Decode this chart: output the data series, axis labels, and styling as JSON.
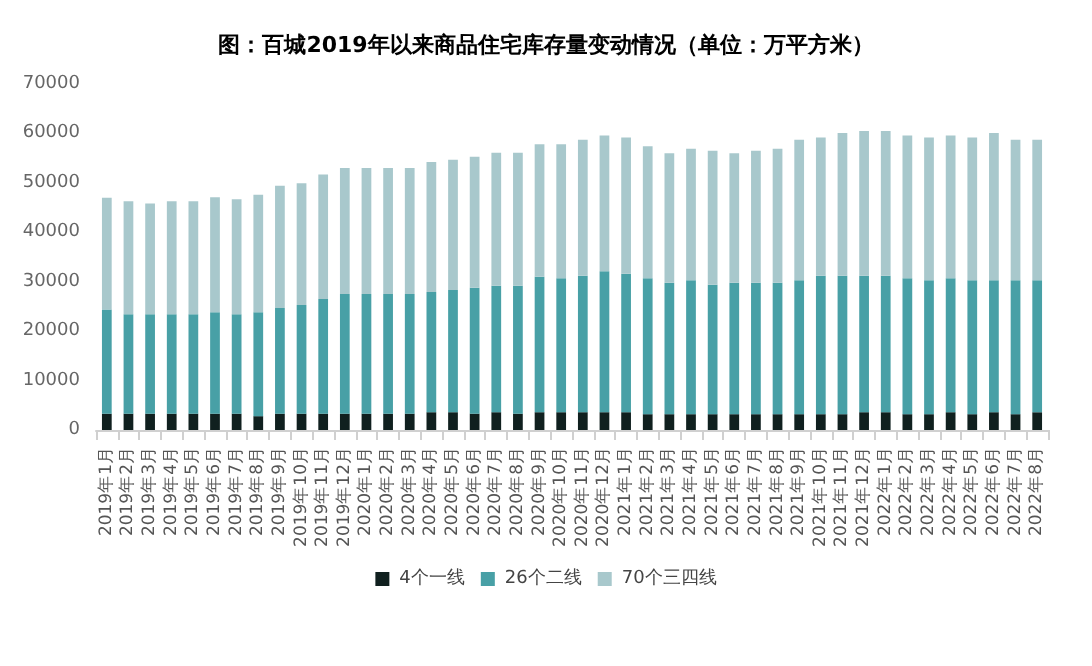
{
  "chart_data": {
    "type": "bar",
    "stacked": true,
    "title": "图：百城2019年以来商品住宅库存量变动情况（单位：万平方米）",
    "categories": [
      "2019年1月",
      "2019年2月",
      "2019年3月",
      "2019年4月",
      "2019年5月",
      "2019年6月",
      "2019年7月",
      "2019年8月",
      "2019年9月",
      "2019年10月",
      "2019年11月",
      "2019年12月",
      "2020年1月",
      "2020年2月",
      "2020年3月",
      "2020年4月",
      "2020年5月",
      "2020年6月",
      "2020年7月",
      "2020年8月",
      "2020年9月",
      "2020年10月",
      "2020年11月",
      "2020年12月",
      "2021年1月",
      "2021年2月",
      "2021年3月",
      "2021年4月",
      "2021年5月",
      "2021年6月",
      "2021年7月",
      "2021年8月",
      "2021年9月",
      "2021年10月",
      "2021年11月",
      "2021年12月",
      "2022年1月",
      "2022年2月",
      "2022年3月",
      "2022年4月",
      "2022年5月",
      "2022年6月",
      "2022年7月",
      "2022年8月"
    ],
    "series": [
      {
        "name": "4个一线",
        "color": "#10201f",
        "values": [
          3300,
          3300,
          3300,
          3300,
          3300,
          3300,
          3300,
          2800,
          3300,
          3300,
          3300,
          3300,
          3300,
          3300,
          3300,
          3600,
          3600,
          3300,
          3600,
          3300,
          3600,
          3600,
          3600,
          3600,
          3600,
          3200,
          3200,
          3200,
          3200,
          3200,
          3200,
          3200,
          3200,
          3200,
          3200,
          3600,
          3600,
          3200,
          3200,
          3600,
          3200,
          3600,
          3200,
          3600
        ]
      },
      {
        "name": "26个二线",
        "color": "#48a0a6",
        "values": [
          21100,
          20100,
          20100,
          20100,
          20100,
          20500,
          20100,
          21000,
          21400,
          22000,
          23200,
          24200,
          24200,
          24200,
          24200,
          24300,
          24700,
          25500,
          25600,
          25900,
          27400,
          27100,
          27600,
          28500,
          28000,
          27500,
          26600,
          27100,
          26200,
          26600,
          26600,
          26600,
          27100,
          28000,
          28000,
          27600,
          27600,
          27500,
          27100,
          27100,
          27100,
          26700,
          27100,
          26700
        ]
      },
      {
        "name": "70个三四线",
        "color": "#a8c8cc",
        "values": [
          22600,
          22900,
          22400,
          22900,
          22900,
          23300,
          23300,
          23800,
          24700,
          24600,
          25200,
          25500,
          25500,
          25500,
          25500,
          26300,
          26400,
          26500,
          26900,
          26900,
          26800,
          27100,
          27500,
          27500,
          27600,
          26700,
          26200,
          26600,
          27100,
          26200,
          26700,
          27100,
          28400,
          28000,
          28900,
          29300,
          29300,
          28900,
          28900,
          28900,
          28900,
          29800,
          28400,
          28400
        ]
      }
    ],
    "ylim": [
      0,
      70000
    ],
    "yticks": [
      0,
      10000,
      20000,
      30000,
      40000,
      50000,
      60000,
      70000
    ],
    "grid": false,
    "legend": "bottom"
  }
}
